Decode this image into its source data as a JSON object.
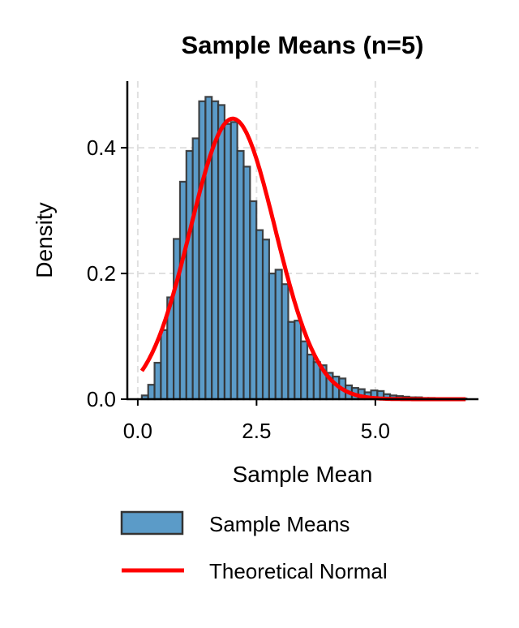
{
  "chart_data": {
    "type": "bar",
    "title": "Sample Means (n=5)",
    "xlabel": "Sample Mean",
    "ylabel": "Density",
    "xlim": [
      -0.22,
      7.17
    ],
    "ylim": [
      0,
      0.506
    ],
    "xticks": [
      0.0,
      2.5,
      5.0
    ],
    "xtick_labels": [
      "0.0",
      "2.5",
      "5.0"
    ],
    "yticks": [
      0.0,
      0.2,
      0.4
    ],
    "ytick_labels": [
      "0.0",
      "0.2",
      "0.4"
    ],
    "grid": true,
    "legend_position": "bottom",
    "histogram": {
      "name": "Sample Means",
      "color": "#5b9bc8",
      "edge_color": "#333333",
      "bin_start": 0.085,
      "bin_width": 0.134,
      "densities": [
        0.006,
        0.023,
        0.058,
        0.11,
        0.162,
        0.255,
        0.346,
        0.395,
        0.415,
        0.474,
        0.481,
        0.474,
        0.468,
        0.438,
        0.441,
        0.395,
        0.37,
        0.315,
        0.269,
        0.254,
        0.2,
        0.206,
        0.183,
        0.123,
        0.125,
        0.092,
        0.071,
        0.059,
        0.054,
        0.042,
        0.036,
        0.033,
        0.022,
        0.018,
        0.016,
        0.011,
        0.014,
        0.013,
        0.008,
        0.006,
        0.005,
        0.004,
        0.003,
        0.003,
        0.002,
        0.002,
        0.001,
        0.001,
        0.001,
        0.001,
        0.001
      ]
    },
    "normal_curve": {
      "name": "Theoretical Normal",
      "color": "#ff0000",
      "mean": 2.0,
      "std": 0.894,
      "x_range": [
        0.085,
        6.9
      ]
    }
  }
}
